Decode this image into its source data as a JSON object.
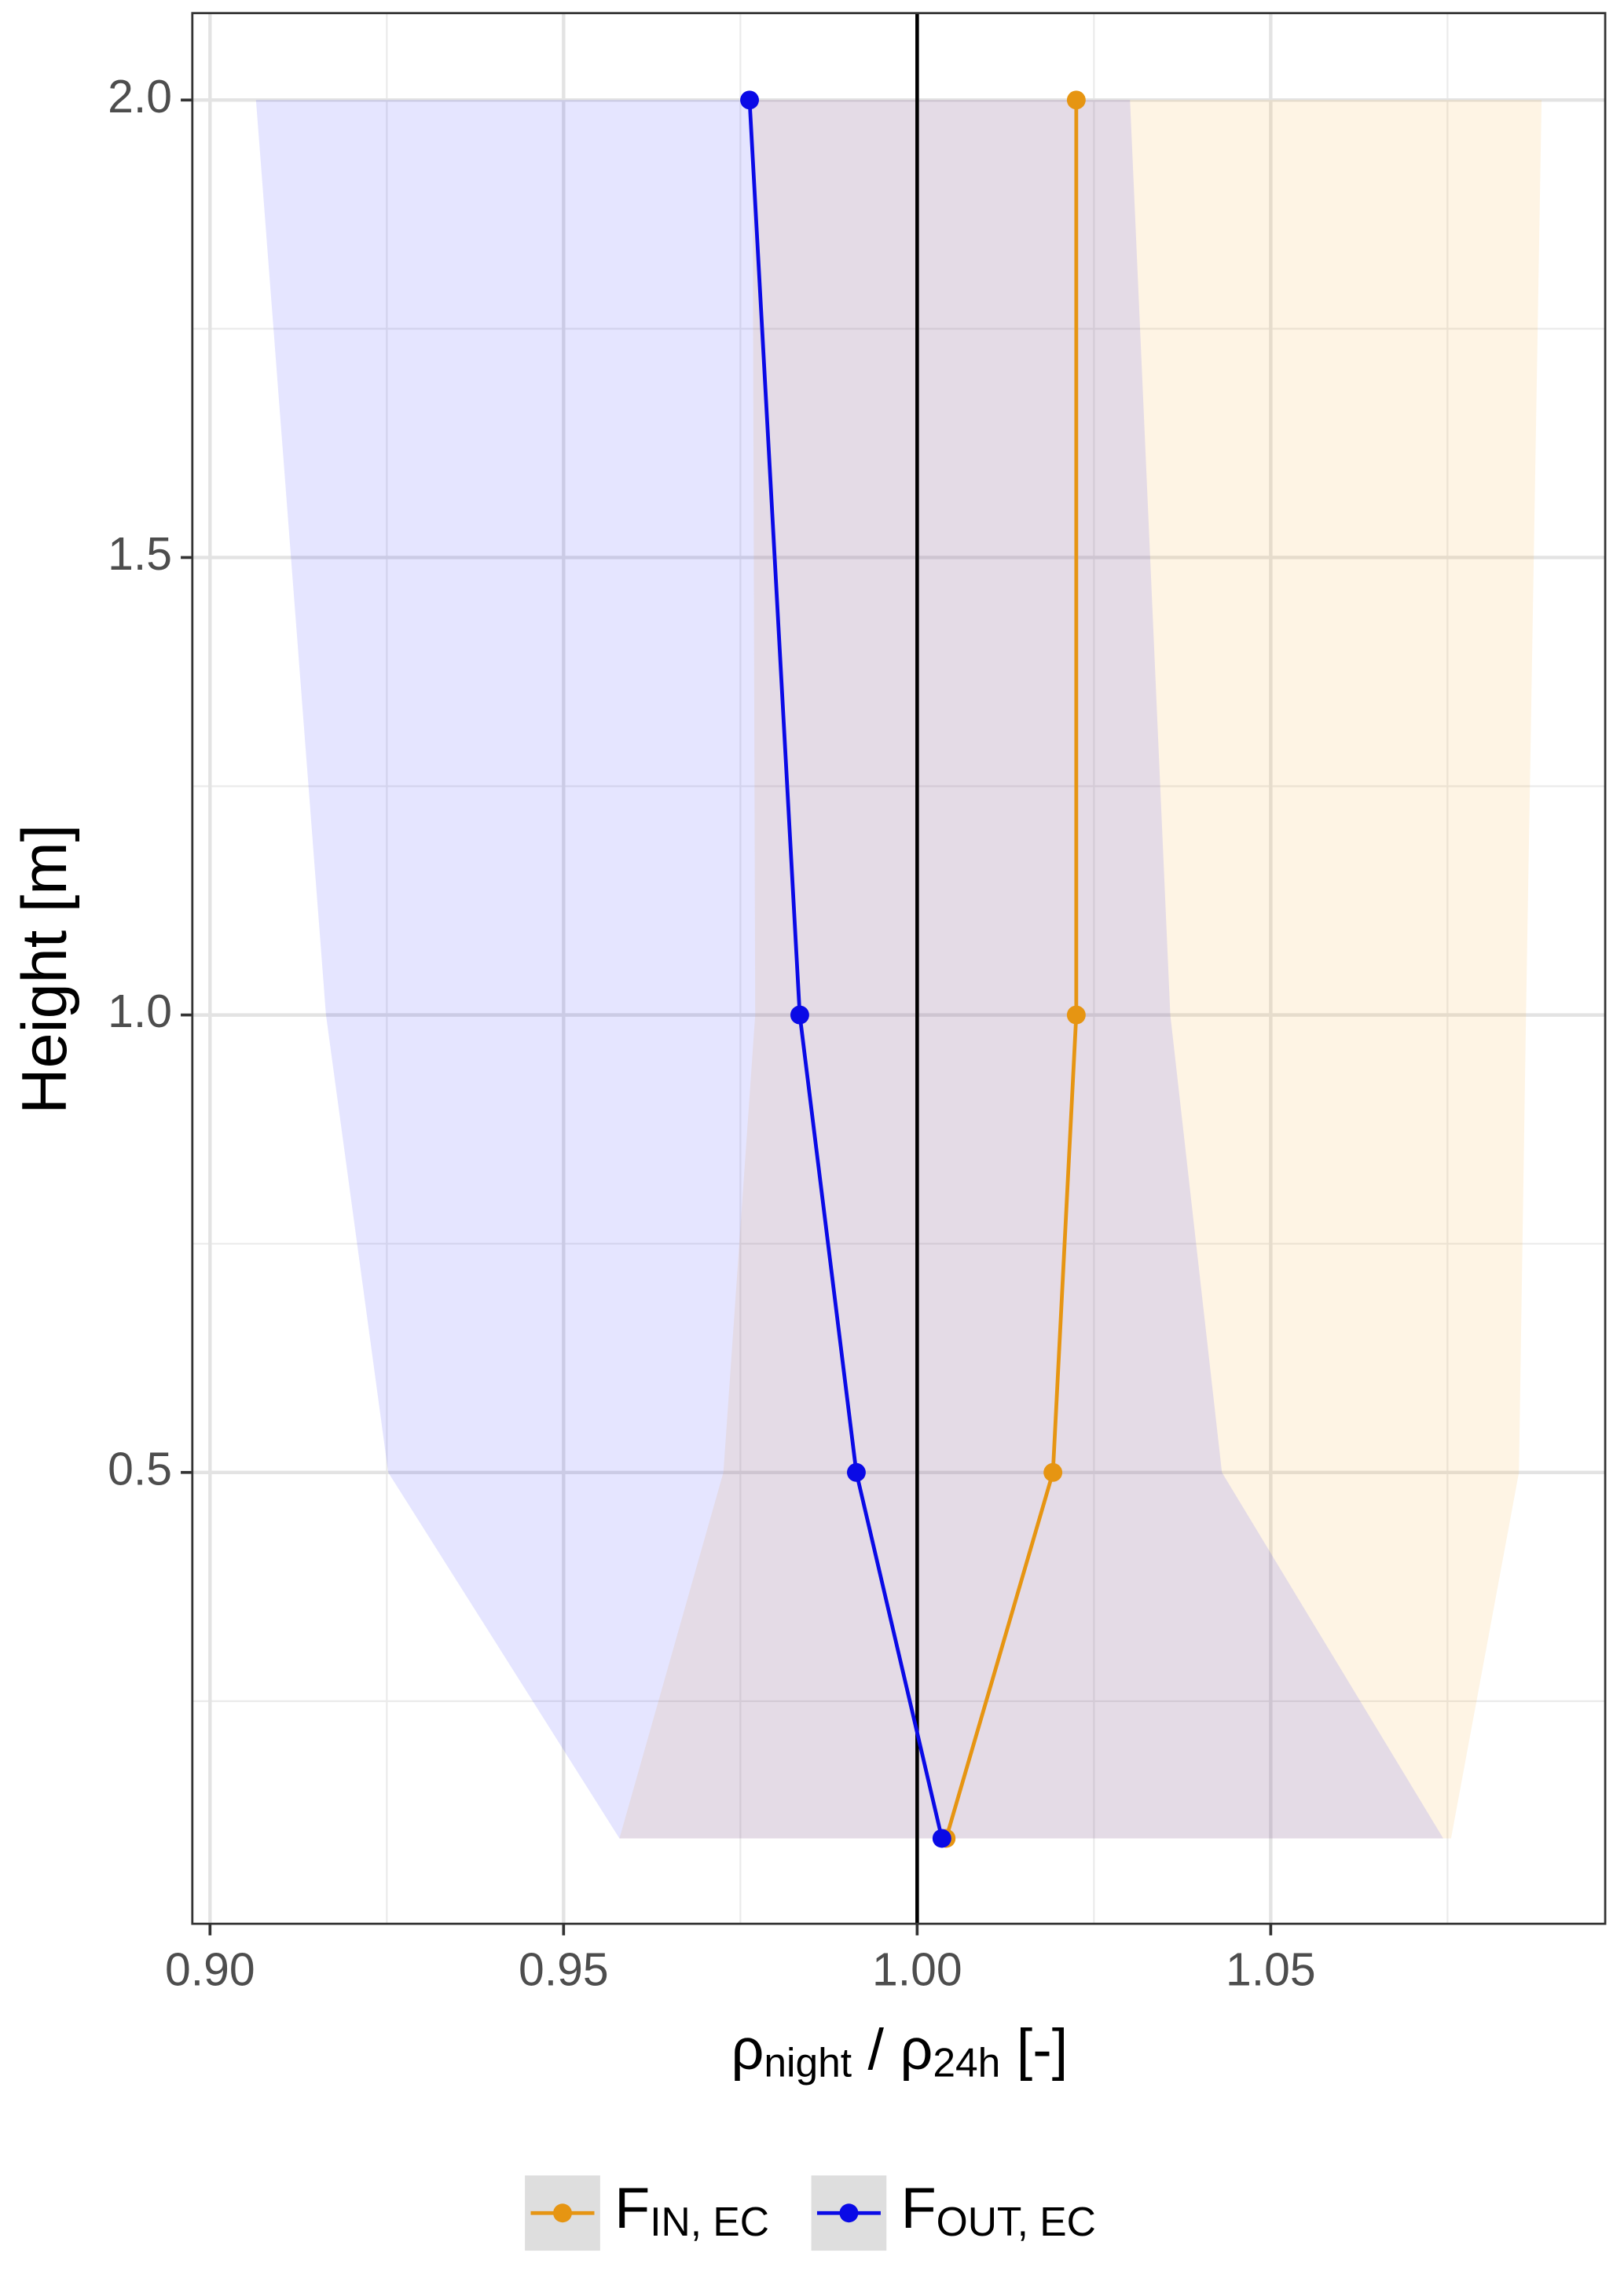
{
  "chart_data": {
    "type": "line",
    "xlabel": {
      "a": "ρ",
      "a_sub": "night",
      "b": " / ρ",
      "b_sub": "24h",
      "c": " [-]"
    },
    "ylabel": "Height [m]",
    "heights": [
      0.1,
      0.5,
      1.0,
      2.0
    ],
    "series": [
      {
        "name": "F",
        "name_sub": "IN, EC",
        "color": "#E69512",
        "band_color": "#F5B041",
        "values": [
          1.0041,
          1.0192,
          1.0225,
          1.0225
        ],
        "lower": [
          0.9579,
          0.9726,
          0.9771,
          0.9767
        ],
        "upper": [
          1.0755,
          1.0851,
          1.0861,
          1.0883
        ]
      },
      {
        "name": "F",
        "name_sub": "OUT, EC",
        "color": "#0A0AE6",
        "band_color": "#0000FF",
        "values": [
          1.0035,
          0.9914,
          0.9834,
          0.9763
        ],
        "lower": [
          0.9579,
          0.9252,
          0.9164,
          0.9065
        ],
        "upper": [
          1.0744,
          1.0431,
          1.0358,
          1.0301
        ]
      }
    ],
    "vline": 1,
    "xlim": [
      0.8975,
      1.0973
    ],
    "ylim": [
      0.0067,
      2.095
    ],
    "xticks": [
      {
        "value": 0.9,
        "label": "0.90"
      },
      {
        "value": 0.95,
        "label": "0.95"
      },
      {
        "value": 1.0,
        "label": "1.00"
      },
      {
        "value": 1.05,
        "label": "1.05"
      }
    ],
    "yticks": [
      0.5,
      {
        "value": 1.0,
        "label": "1.0"
      },
      {
        "value": 1.5,
        "label": "1.5"
      },
      {
        "value": 2.0,
        "label": "2.0"
      }
    ],
    "minor_xticks": [
      0.925,
      0.975,
      1.025,
      1.075
    ],
    "minor_yticks": [
      0.25,
      0.75,
      1.25,
      1.75
    ],
    "grid": true,
    "legend": "bottom"
  }
}
